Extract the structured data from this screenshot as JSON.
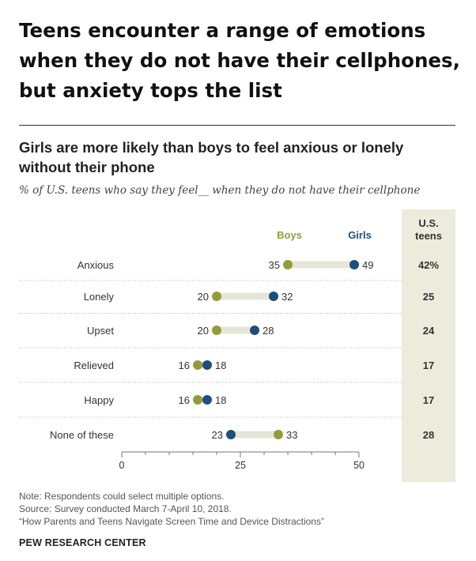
{
  "headline": "Teens encounter a range of emotions when they do not have their cellphones, but anxiety tops the list",
  "chart_data": {
    "type": "scatter",
    "style": "dot-plot",
    "title": "Girls are more likely than boys to feel anxious or lonely without their phone",
    "subtitle": "% of U.S. teens who say they feel__ when they do not have their cellphone",
    "series": [
      {
        "name": "Boys",
        "color": "#949b3c",
        "values": [
          35,
          20,
          20,
          16,
          16,
          33
        ]
      },
      {
        "name": "Girls",
        "color": "#1f4e7a",
        "values": [
          49,
          32,
          28,
          18,
          18,
          23
        ]
      }
    ],
    "categories": [
      "Anxious",
      "Lonely",
      "Upset",
      "Relieved",
      "Happy",
      "None of these"
    ],
    "total_column": {
      "header": "U.S. teens",
      "values": [
        "42%",
        "25",
        "24",
        "17",
        "17",
        "28"
      ]
    },
    "xlim": [
      0,
      50
    ],
    "xticks": [
      0,
      25,
      50
    ],
    "xlabel": "",
    "ylabel": "",
    "grid": false,
    "legend": "top",
    "connector_color": "#e6e6d8",
    "total_column_bg": "#ecebdc"
  },
  "notes": {
    "note": "Note: Respondents could select multiple options.",
    "source": "Source: Survey conducted March 7-April 10, 2018.",
    "report": "“How Parents and Teens Navigate Screen Time and Device Distractions”"
  },
  "brand": "PEW RESEARCH CENTER"
}
